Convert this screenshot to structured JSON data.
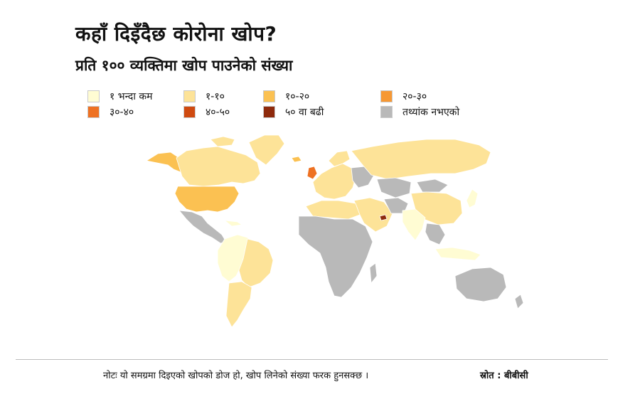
{
  "title": "कहाँ दिइँदैछ कोरोना खोप?",
  "subtitle": "प्रति १०० व्यक्तिमा खोप पाउनेको संख्या",
  "legend": [
    {
      "label": "१ भन्दा कम",
      "color": "#fffcd3"
    },
    {
      "label": "१-१०",
      "color": "#fde398"
    },
    {
      "label": "१०-२०",
      "color": "#fbc152"
    },
    {
      "label": "२०-३०",
      "color": "#f69834"
    },
    {
      "label": "३०-४०",
      "color": "#ee7122"
    },
    {
      "label": "४०-५०",
      "color": "#cf4a10"
    },
    {
      "label": "५० वा बढी",
      "color": "#8e2a0c"
    },
    {
      "label": "तथ्यांक नभएको",
      "color": "#b9b9b9"
    }
  ],
  "footer": {
    "note": "नोटः यो समग्रमा दिइएको खोपको डोज हो, खोप लिनेको संख्या फरक हुनसक्छ ।",
    "source": "स्रोत : बीबीसी"
  }
}
